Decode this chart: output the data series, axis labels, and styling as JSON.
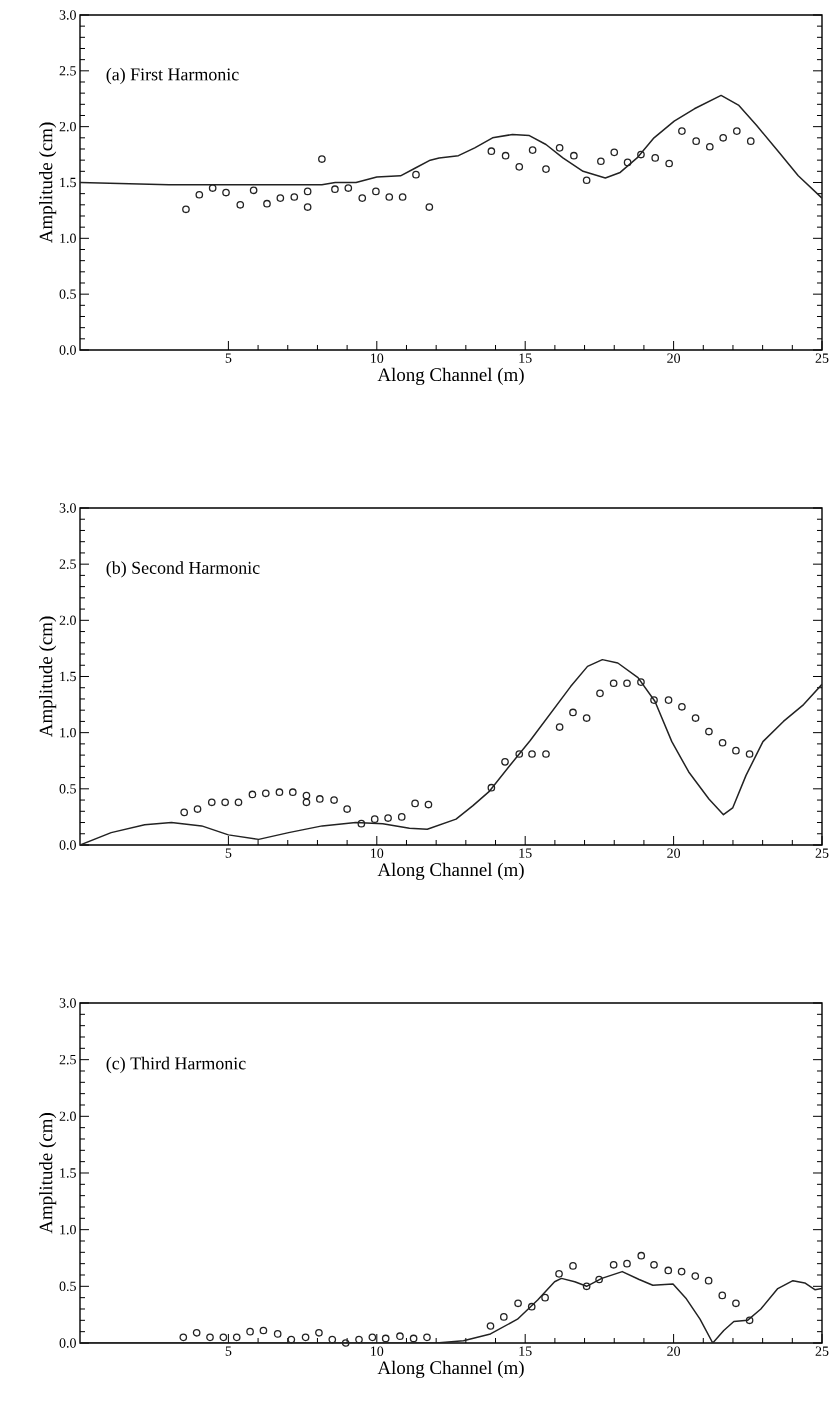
{
  "chart_data": [
    {
      "type": "scatter",
      "title": "(a) First Harmonic",
      "xlabel": "Along Channel (m)",
      "ylabel": "Amplitude (cm)",
      "xlim": [
        0,
        25
      ],
      "ylim": [
        0,
        3
      ],
      "xticks": [
        5,
        10,
        15,
        20,
        25
      ],
      "yticks": [
        {
          "value": 0,
          "label": "0.0"
        },
        {
          "value": 0.5,
          "label": "0.5"
        },
        {
          "value": 1,
          "label": "1.0"
        },
        {
          "value": 1.5,
          "label": "1.5"
        },
        {
          "value": 2,
          "label": "2.0"
        },
        {
          "value": 2.5,
          "label": "2.5"
        },
        {
          "value": 3,
          "label": "3.0"
        }
      ],
      "series": [
        {
          "type": "line",
          "color": "#222222",
          "line_style": "solid",
          "marker": "none",
          "x": [
            0,
            3,
            6,
            8.15,
            8.6,
            9.3,
            10,
            10.8,
            11.3,
            11.8,
            12.1,
            12.75,
            13.3,
            13.9,
            14.57,
            15.14,
            15.7,
            16.27,
            16.95,
            17.7,
            18.2,
            18.77,
            19.34,
            20.02,
            20.7,
            21.6,
            22.2,
            22.8,
            23.55,
            24.2,
            25
          ],
          "values": [
            1.5,
            1.48,
            1.48,
            1.48,
            1.5,
            1.5,
            1.55,
            1.56,
            1.63,
            1.7,
            1.72,
            1.74,
            1.81,
            1.9,
            1.93,
            1.92,
            1.84,
            1.72,
            1.6,
            1.54,
            1.59,
            1.72,
            1.9,
            2.05,
            2.16,
            2.28,
            2.19,
            2.01,
            1.77,
            1.56,
            1.36
          ]
        },
        {
          "color": "#222222",
          "marker": "circle",
          "x": [
            3.57,
            4.02,
            4.47,
            4.92,
            5.4,
            5.85,
            6.3,
            6.75,
            7.22,
            7.67,
            7.67,
            8.15,
            8.59,
            9.04,
            9.51,
            9.97,
            10.42,
            10.87,
            11.32,
            11.77,
            13.86,
            14.34,
            14.8,
            15.25,
            15.7,
            16.16,
            16.64,
            17.07,
            17.55,
            18.0,
            18.45,
            18.9,
            19.38,
            19.85,
            20.28,
            20.76,
            21.22,
            21.67,
            22.13,
            22.6
          ],
          "values": [
            1.26,
            1.39,
            1.45,
            1.41,
            1.3,
            1.43,
            1.31,
            1.36,
            1.37,
            1.42,
            1.28,
            1.71,
            1.44,
            1.45,
            1.36,
            1.42,
            1.37,
            1.37,
            1.57,
            1.28,
            1.78,
            1.74,
            1.64,
            1.79,
            1.62,
            1.81,
            1.74,
            1.52,
            1.69,
            1.77,
            1.68,
            1.75,
            1.72,
            1.67,
            1.96,
            1.87,
            1.82,
            1.9,
            1.96,
            1.87
          ]
        }
      ]
    },
    {
      "type": "scatter",
      "title": "(b) Second Harmonic",
      "xlabel": "Along Channel (m)",
      "ylabel": "Amplitude (cm)",
      "xlim": [
        0,
        25
      ],
      "ylim": [
        0,
        3
      ],
      "xticks": [
        5,
        10,
        15,
        20,
        25
      ],
      "yticks": [
        {
          "value": 0,
          "label": "0.0"
        },
        {
          "value": 0.5,
          "label": "0.5"
        },
        {
          "value": 1,
          "label": "1.0"
        },
        {
          "value": 1.5,
          "label": "1.5"
        },
        {
          "value": 2,
          "label": "2.0"
        },
        {
          "value": 2.5,
          "label": "2.5"
        },
        {
          "value": 3,
          "label": "3.0"
        }
      ],
      "series": [
        {
          "type": "line",
          "color": "#222222",
          "line_style": "solid",
          "marker": "none",
          "x": [
            0,
            1.05,
            2.18,
            3.08,
            4.1,
            5.0,
            6.02,
            7.03,
            8.16,
            9.29,
            10.2,
            11.1,
            11.7,
            12.67,
            13.24,
            13.8,
            14.49,
            15.17,
            15.85,
            16.53,
            17.1,
            17.6,
            18.12,
            18.8,
            19.37,
            19.94,
            20.51,
            21.19,
            21.68,
            21.99,
            22.44,
            23.01,
            23.7,
            24.38,
            25
          ],
          "values": [
            0,
            0.11,
            0.18,
            0.2,
            0.17,
            0.09,
            0.05,
            0.11,
            0.17,
            0.2,
            0.19,
            0.15,
            0.14,
            0.23,
            0.35,
            0.48,
            0.71,
            0.93,
            1.17,
            1.41,
            1.59,
            1.65,
            1.62,
            1.49,
            1.28,
            0.92,
            0.65,
            0.41,
            0.27,
            0.33,
            0.62,
            0.92,
            1.1,
            1.25,
            1.43
          ]
        },
        {
          "color": "#222222",
          "marker": "circle",
          "x": [
            3.51,
            3.96,
            4.44,
            4.89,
            5.34,
            5.81,
            6.26,
            6.72,
            7.17,
            7.63,
            7.63,
            8.08,
            8.56,
            9.0,
            9.48,
            9.93,
            10.38,
            10.84,
            11.29,
            11.74,
            13.86,
            14.32,
            14.8,
            15.23,
            15.7,
            16.16,
            16.61,
            17.07,
            17.52,
            17.98,
            18.43,
            18.9,
            19.34,
            19.83,
            20.28,
            20.74,
            21.19,
            21.65,
            22.1,
            22.56
          ],
          "values": [
            0.29,
            0.32,
            0.38,
            0.38,
            0.38,
            0.45,
            0.46,
            0.47,
            0.47,
            0.44,
            0.38,
            0.41,
            0.4,
            0.32,
            0.19,
            0.23,
            0.24,
            0.25,
            0.37,
            0.36,
            0.51,
            0.74,
            0.81,
            0.81,
            0.81,
            1.05,
            1.18,
            1.13,
            1.35,
            1.44,
            1.44,
            1.45,
            1.29,
            1.29,
            1.23,
            1.13,
            1.01,
            0.91,
            0.84,
            0.81
          ]
        }
      ]
    },
    {
      "type": "scatter",
      "title": "(c) Third Harmonic",
      "xlabel": "Along Channel (m)",
      "ylabel": "Amplitude (cm)",
      "xlim": [
        0,
        25
      ],
      "ylim": [
        0,
        3
      ],
      "xticks": [
        5,
        10,
        15,
        20,
        25
      ],
      "yticks": [
        {
          "value": 0,
          "label": "0.0"
        },
        {
          "value": 0.5,
          "label": "0.5"
        },
        {
          "value": 1,
          "label": "1.0"
        },
        {
          "value": 1.5,
          "label": "1.5"
        },
        {
          "value": 2,
          "label": "2.0"
        },
        {
          "value": 2.5,
          "label": "2.5"
        },
        {
          "value": 3,
          "label": "3.0"
        }
      ],
      "series": [
        {
          "type": "line",
          "color": "#222222",
          "line_style": "solid",
          "marker": "none",
          "x": [
            0,
            12.0,
            12.92,
            13.83,
            14.74,
            15.42,
            15.99,
            16.22,
            16.67,
            17.07,
            17.58,
            18.27,
            18.84,
            19.3,
            19.98,
            20.43,
            20.89,
            21.32,
            21.69,
            22.03,
            22.49,
            22.94,
            23.51,
            24.02,
            24.42,
            24.76,
            25
          ],
          "values": [
            0,
            0,
            0.02,
            0.08,
            0.21,
            0.38,
            0.54,
            0.57,
            0.54,
            0.5,
            0.57,
            0.63,
            0.56,
            0.51,
            0.52,
            0.39,
            0.21,
            0.0,
            0.11,
            0.19,
            0.2,
            0.3,
            0.48,
            0.55,
            0.53,
            0.47,
            0.48
          ]
        },
        {
          "color": "#222222",
          "marker": "circle",
          "x": [
            3.48,
            3.93,
            4.38,
            4.83,
            5.28,
            5.73,
            6.18,
            6.66,
            7.12,
            7.6,
            8.05,
            8.5,
            8.95,
            9.4,
            9.85,
            10.3,
            10.78,
            11.24,
            11.69,
            13.83,
            14.28,
            14.76,
            15.22,
            15.67,
            16.14,
            16.61,
            17.07,
            17.49,
            17.98,
            18.43,
            18.91,
            19.34,
            19.82,
            20.27,
            20.73,
            21.18,
            21.64,
            22.1,
            22.56
          ],
          "values": [
            0.05,
            0.09,
            0.05,
            0.05,
            0.05,
            0.1,
            0.11,
            0.08,
            0.03,
            0.05,
            0.09,
            0.03,
            0.0,
            0.03,
            0.05,
            0.04,
            0.06,
            0.04,
            0.05,
            0.15,
            0.23,
            0.35,
            0.32,
            0.4,
            0.61,
            0.68,
            0.5,
            0.56,
            0.69,
            0.7,
            0.77,
            0.69,
            0.64,
            0.63,
            0.59,
            0.55,
            0.42,
            0.35,
            0.2
          ]
        }
      ]
    }
  ]
}
